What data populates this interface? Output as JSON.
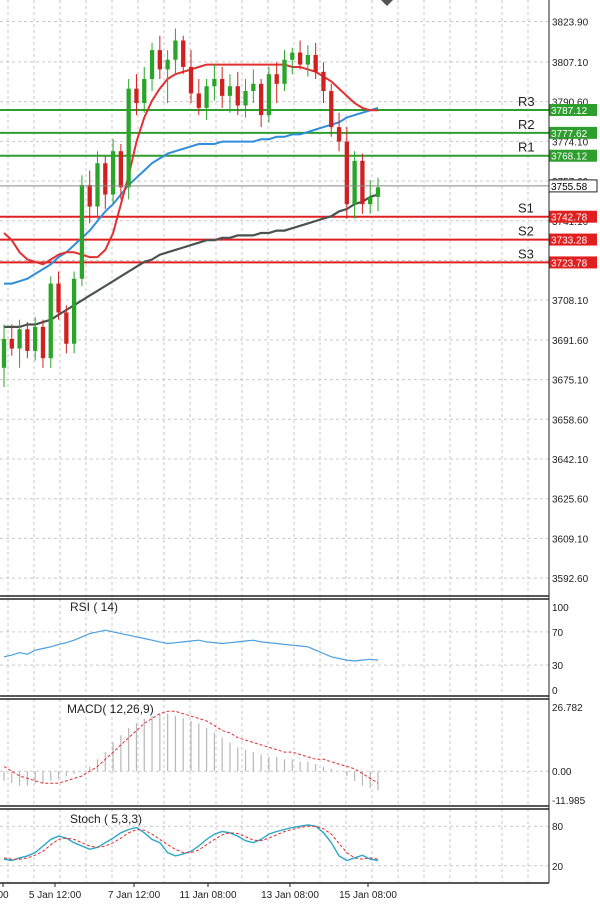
{
  "chart_data": {
    "type": "candlestick",
    "instrument_price": 3755.58,
    "x_ticks": [
      {
        "label": "00",
        "pos": 0.0
      },
      {
        "label": "5 Jan 12:00",
        "pos": 0.14
      },
      {
        "label": "7 Jan 12:00",
        "pos": 0.35
      },
      {
        "label": "11 Jan 08:00",
        "pos": 0.55
      },
      {
        "label": "13 Jan 08:00",
        "pos": 0.76
      },
      {
        "label": "15 Jan 08:00",
        "pos": 0.97
      }
    ],
    "price_axis": {
      "min": 3586,
      "max": 3832,
      "ticks": [
        3823.9,
        3807.1,
        3790.6,
        3774.1,
        3757.6,
        3741.1,
        3724.6,
        3708.1,
        3691.6,
        3675.1,
        3658.6,
        3642.1,
        3625.6,
        3609.1,
        3592.6
      ],
      "tick_labels": [
        "3823.90",
        "3807.10",
        "3790.60",
        "3774.10",
        "3757.60",
        "3741.10",
        "3724.60",
        "3708.10",
        "3691.60",
        "3675.10",
        "3658.60",
        "3642.10",
        "3625.60",
        "3609.10",
        "3592.60"
      ]
    },
    "levels": [
      {
        "name": "R3",
        "value": 3787.12,
        "label": "3787.12",
        "color": "#2e9e2e"
      },
      {
        "name": "R2",
        "value": 3777.62,
        "label": "3777.62",
        "color": "#2e9e2e"
      },
      {
        "name": "R1",
        "value": 3768.12,
        "label": "3768.12",
        "color": "#2e9e2e"
      },
      {
        "name": "S1",
        "value": 3742.78,
        "label": "3742.78",
        "color": "#e02020"
      },
      {
        "name": "S2",
        "value": 3733.28,
        "label": "3733.28",
        "color": "#e02020"
      },
      {
        "name": "S3",
        "value": 3723.78,
        "label": "3723.78",
        "color": "#e02020"
      }
    ],
    "current_price_label": "3755.58",
    "candles": [
      [
        3680,
        3698,
        3672,
        3692
      ],
      [
        3692,
        3698,
        3685,
        3688
      ],
      [
        3688,
        3700,
        3680,
        3696
      ],
      [
        3696,
        3699,
        3684,
        3687
      ],
      [
        3687,
        3701,
        3683,
        3697
      ],
      [
        3697,
        3700,
        3680,
        3684
      ],
      [
        3684,
        3718,
        3680,
        3715
      ],
      [
        3715,
        3720,
        3700,
        3703
      ],
      [
        3703,
        3706,
        3686,
        3690
      ],
      [
        3690,
        3720,
        3686,
        3717
      ],
      [
        3717,
        3760,
        3714,
        3756
      ],
      [
        3756,
        3762,
        3740,
        3747
      ],
      [
        3747,
        3770,
        3742,
        3765
      ],
      [
        3765,
        3768,
        3746,
        3752
      ],
      [
        3752,
        3775,
        3748,
        3770
      ],
      [
        3770,
        3773,
        3750,
        3755
      ],
      [
        3755,
        3800,
        3750,
        3796
      ],
      [
        3796,
        3802,
        3785,
        3790
      ],
      [
        3790,
        3805,
        3786,
        3800
      ],
      [
        3800,
        3815,
        3795,
        3812
      ],
      [
        3812,
        3818,
        3800,
        3804
      ],
      [
        3804,
        3812,
        3790,
        3808
      ],
      [
        3808,
        3821,
        3802,
        3816
      ],
      [
        3816,
        3818,
        3802,
        3805
      ],
      [
        3805,
        3812,
        3790,
        3794
      ],
      [
        3794,
        3800,
        3785,
        3788
      ],
      [
        3788,
        3800,
        3783,
        3797
      ],
      [
        3797,
        3806,
        3791,
        3800
      ],
      [
        3800,
        3805,
        3788,
        3793
      ],
      [
        3793,
        3802,
        3786,
        3797
      ],
      [
        3797,
        3803,
        3785,
        3789
      ],
      [
        3789,
        3800,
        3784,
        3795
      ],
      [
        3795,
        3804,
        3790,
        3798
      ],
      [
        3798,
        3800,
        3780,
        3785
      ],
      [
        3785,
        3805,
        3782,
        3802
      ],
      [
        3802,
        3807,
        3790,
        3798
      ],
      [
        3798,
        3812,
        3795,
        3808
      ],
      [
        3808,
        3813,
        3802,
        3811
      ],
      [
        3811,
        3816,
        3804,
        3806
      ],
      [
        3806,
        3814,
        3801,
        3810
      ],
      [
        3810,
        3815,
        3800,
        3803
      ],
      [
        3803,
        3807,
        3790,
        3795
      ],
      [
        3795,
        3798,
        3776,
        3780
      ],
      [
        3780,
        3786,
        3770,
        3774
      ],
      [
        3774,
        3780,
        3742,
        3748
      ],
      [
        3748,
        3770,
        3742,
        3766
      ],
      [
        3766,
        3769,
        3744,
        3748
      ],
      [
        3748,
        3758,
        3744,
        3751
      ],
      [
        3751,
        3759,
        3745,
        3755
      ]
    ],
    "ma_red": [
      3736,
      3733,
      3728,
      3725,
      3724,
      3723,
      3725,
      3727,
      3728,
      3728,
      3727,
      3726,
      3726,
      3729,
      3736,
      3748,
      3760,
      3774,
      3784,
      3791,
      3796,
      3800,
      3802,
      3803,
      3804,
      3805,
      3806,
      3806,
      3806,
      3806,
      3806,
      3806,
      3806,
      3806,
      3806,
      3806,
      3806,
      3805,
      3805,
      3804,
      3803,
      3801,
      3799,
      3796,
      3793,
      3790,
      3788,
      3787,
      3787
    ],
    "ma_blue": [
      3715,
      3715,
      3716,
      3717,
      3719,
      3721,
      3723,
      3726,
      3728,
      3731,
      3734,
      3737,
      3741,
      3745,
      3748,
      3752,
      3756,
      3759,
      3762,
      3765,
      3767,
      3769,
      3770,
      3771,
      3772,
      3773,
      3773,
      3773,
      3774,
      3774,
      3774,
      3774,
      3774,
      3775,
      3775,
      3776,
      3776,
      3777,
      3777,
      3778,
      3779,
      3780,
      3781,
      3782,
      3784,
      3785,
      3786,
      3787,
      3788
    ],
    "ma_dark": [
      3697,
      3697,
      3697,
      3698,
      3698,
      3699,
      3700,
      3702,
      3704,
      3706,
      3708,
      3710,
      3712,
      3714,
      3716,
      3718,
      3720,
      3722,
      3724,
      3725,
      3727,
      3728,
      3729,
      3730,
      3731,
      3732,
      3733,
      3733,
      3734,
      3734,
      3735,
      3735,
      3735,
      3736,
      3736,
      3737,
      3737,
      3738,
      3739,
      3740,
      3741,
      3742,
      3743,
      3745,
      3746,
      3748,
      3749,
      3751,
      3752
    ],
    "rsi": {
      "label": "RSI ( 14)",
      "ticks": [
        100,
        70,
        30,
        0
      ],
      "tick_labels": [
        "100",
        "70",
        "30",
        "0"
      ],
      "values": [
        40,
        42,
        45,
        43,
        48,
        50,
        52,
        55,
        57,
        60,
        64,
        68,
        70,
        72,
        70,
        68,
        66,
        64,
        62,
        60,
        58,
        56,
        57,
        58,
        59,
        60,
        58,
        57,
        56,
        57,
        58,
        59,
        60,
        58,
        57,
        56,
        55,
        54,
        53,
        52,
        48,
        44,
        40,
        38,
        36,
        35,
        36,
        37,
        36
      ]
    },
    "macd": {
      "label": "MACD( 12,26,9)",
      "ticks": [
        26.782,
        0.0,
        -11.985
      ],
      "tick_labels": [
        "26.782",
        "0.00",
        "-11.985"
      ],
      "min": -11.985,
      "max": 26.782,
      "hist": [
        -4,
        -5,
        -6,
        -6,
        -5,
        -5,
        -4,
        -3,
        -2,
        -1,
        0,
        2,
        5,
        8,
        12,
        15,
        18,
        20,
        22,
        23,
        24,
        24,
        23,
        22,
        21,
        20,
        18,
        16,
        14,
        12,
        10,
        9,
        8,
        7,
        6,
        6,
        5,
        5,
        4,
        4,
        3,
        2,
        1,
        0,
        -2,
        -4,
        -6,
        -7,
        -8
      ],
      "signal": [
        2,
        0,
        -2,
        -3,
        -4,
        -5,
        -5,
        -5,
        -4,
        -3,
        -2,
        0,
        2,
        5,
        8,
        11,
        14,
        17,
        20,
        22,
        24,
        25,
        25,
        24,
        23,
        22,
        21,
        19,
        17,
        16,
        14,
        13,
        12,
        11,
        10,
        9,
        8,
        8,
        7,
        6,
        5,
        5,
        4,
        3,
        2,
        1,
        -1,
        -3,
        -5
      ]
    },
    "stoch": {
      "label": "Stoch ( 5,3,3)",
      "ticks": [
        80,
        20
      ],
      "tick_labels": [
        "80",
        "20"
      ],
      "k": [
        30,
        28,
        32,
        35,
        40,
        50,
        60,
        65,
        62,
        55,
        50,
        45,
        48,
        55,
        62,
        70,
        75,
        78,
        70,
        60,
        55,
        40,
        35,
        38,
        42,
        50,
        60,
        68,
        72,
        70,
        65,
        58,
        55,
        60,
        68,
        72,
        75,
        78,
        80,
        82,
        80,
        70,
        55,
        35,
        28,
        32,
        36,
        30,
        28
      ],
      "d": [
        32,
        30,
        30,
        32,
        36,
        42,
        52,
        60,
        62,
        60,
        55,
        50,
        48,
        50,
        55,
        62,
        70,
        75,
        74,
        68,
        60,
        52,
        45,
        40,
        40,
        44,
        52,
        60,
        67,
        70,
        69,
        64,
        59,
        58,
        62,
        67,
        72,
        75,
        78,
        80,
        80,
        76,
        68,
        54,
        40,
        32,
        30,
        32,
        30
      ]
    }
  }
}
